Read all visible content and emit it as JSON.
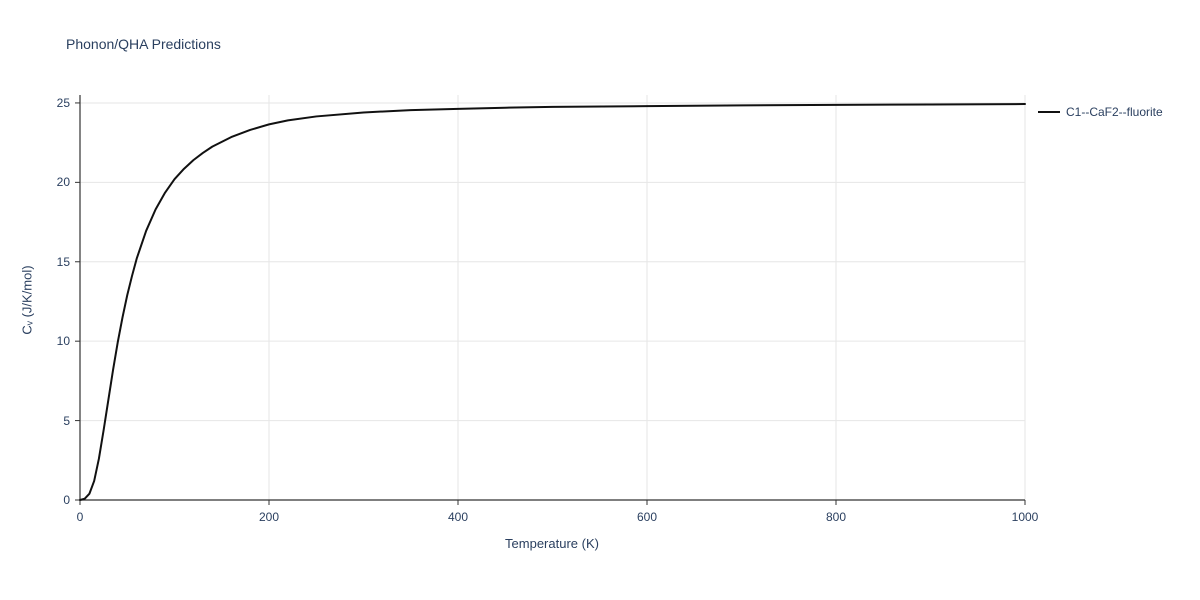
{
  "chart": {
    "type": "line",
    "title": "Phonon/QHA Predictions",
    "title_fontsize": 14,
    "title_color": "#2a3f5f",
    "xlabel": "Temperature (K)",
    "ylabel": "Cᵥ (J/K/mol)",
    "label_fontsize": 13,
    "tick_fontsize": 12,
    "xlim": [
      0,
      1000
    ],
    "ylim": [
      0,
      25.5
    ],
    "xticks": [
      0,
      200,
      400,
      600,
      800,
      1000
    ],
    "yticks": [
      0,
      5,
      10,
      15,
      20,
      25
    ],
    "grid_color": "#e6e6e6",
    "axis_line_color": "#333333",
    "background_color": "#ffffff",
    "plot_bg": "#ffffff",
    "tick_color": "#333333",
    "text_color": "#2a3f5f",
    "series": [
      {
        "name": "C1--CaF2--fluorite",
        "color": "#111111",
        "line_width": 2,
        "data_x": [
          0,
          5,
          10,
          15,
          20,
          25,
          30,
          35,
          40,
          45,
          50,
          55,
          60,
          70,
          80,
          90,
          100,
          110,
          120,
          130,
          140,
          150,
          160,
          180,
          200,
          220,
          250,
          300,
          350,
          400,
          450,
          500,
          600,
          700,
          800,
          900,
          1000
        ],
        "data_y": [
          0,
          0.08,
          0.4,
          1.2,
          2.6,
          4.4,
          6.3,
          8.2,
          9.95,
          11.5,
          12.9,
          14.1,
          15.2,
          16.95,
          18.3,
          19.35,
          20.2,
          20.85,
          21.4,
          21.85,
          22.25,
          22.55,
          22.85,
          23.3,
          23.65,
          23.9,
          24.15,
          24.4,
          24.55,
          24.63,
          24.7,
          24.75,
          24.8,
          24.85,
          24.88,
          24.9,
          24.93
        ]
      }
    ],
    "legend": {
      "position": "right",
      "fontsize": 12,
      "line_length": 22
    }
  }
}
